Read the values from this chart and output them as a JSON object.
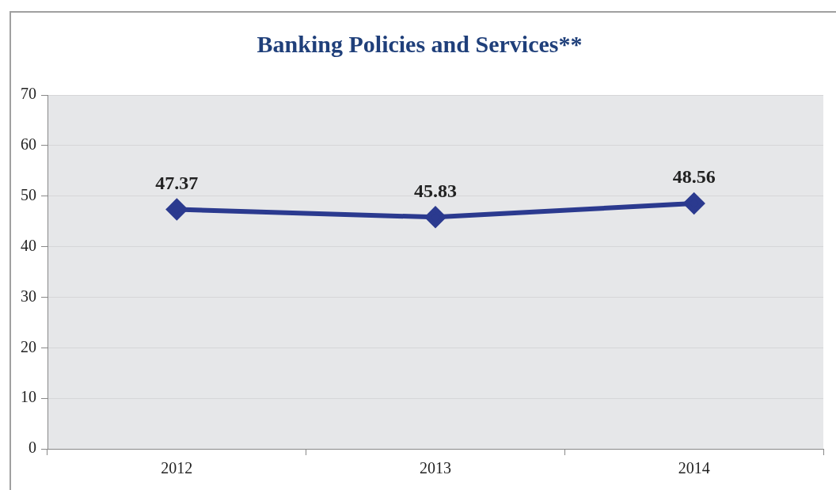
{
  "chart_data": {
    "type": "line",
    "title": "Banking Policies and Services**",
    "categories": [
      "2012",
      "2013",
      "2014"
    ],
    "series": [
      {
        "color": "#2b3a8f",
        "values": [
          47.37,
          45.83,
          48.56
        ]
      }
    ],
    "ylim": [
      0,
      70
    ],
    "yticks": [
      0,
      10,
      20,
      30,
      40,
      50,
      60,
      70
    ],
    "grid": "y",
    "legend": false,
    "marker": "diamond",
    "line_style": "solid",
    "data_labels": true
  }
}
